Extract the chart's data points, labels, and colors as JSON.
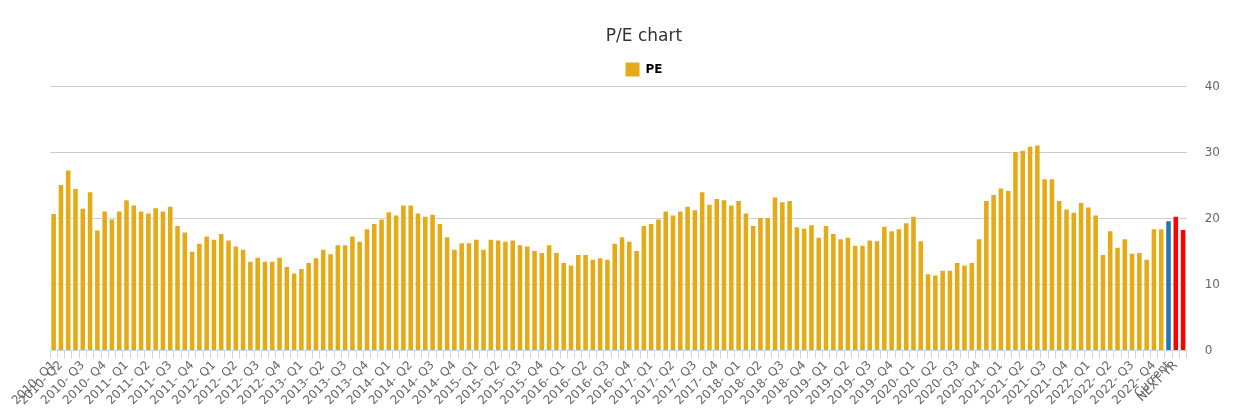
{
  "chart_data": {
    "type": "bar",
    "title": "P/E chart",
    "categories": [
      "2010- Q1",
      "2010- Q2",
      null,
      null,
      "2010- Q3",
      null,
      null,
      "2010- Q4",
      null,
      null,
      "2011- Q1",
      null,
      null,
      "2011- Q2",
      null,
      null,
      "2011- Q3",
      null,
      null,
      "2011- Q4",
      null,
      null,
      "2012- Q1",
      null,
      null,
      "2012- Q2",
      null,
      null,
      "2012- Q3",
      null,
      null,
      "2012- Q4",
      null,
      null,
      "2013- Q1",
      null,
      null,
      "2013- Q2",
      null,
      null,
      "2013- Q3",
      null,
      null,
      "2013- Q4",
      null,
      null,
      "2014- Q1",
      null,
      null,
      "2014- Q2",
      null,
      null,
      "2014- Q3",
      null,
      null,
      "2014- Q4",
      null,
      null,
      "2015- Q1",
      null,
      null,
      "2015- Q2",
      null,
      null,
      "2015- Q3",
      null,
      null,
      "2015- Q4",
      null,
      null,
      "2016- Q1",
      null,
      null,
      "2016- Q2",
      null,
      null,
      "2016- Q3",
      null,
      null,
      "2016- Q4",
      null,
      null,
      "2017- Q1",
      null,
      null,
      "2017- Q2",
      null,
      null,
      "2017- Q3",
      null,
      null,
      "2017- Q4",
      null,
      null,
      "2018- Q1",
      null,
      null,
      "2018- Q2",
      null,
      null,
      "2018- Q3",
      null,
      null,
      "2018- Q4",
      null,
      null,
      "2019- Q1",
      null,
      null,
      "2019- Q2",
      null,
      null,
      "2019- Q3",
      null,
      null,
      "2019- Q4",
      null,
      null,
      "2020- Q1",
      null,
      null,
      "2020- Q2",
      null,
      null,
      "2020- Q3",
      null,
      null,
      "2020- Q4",
      null,
      null,
      "2021- Q1",
      null,
      null,
      "2021- Q2",
      null,
      null,
      "2021- Q3",
      null,
      null,
      "2021- Q4",
      null,
      null,
      "2022- Q1",
      null,
      null,
      "2022- Q2",
      null,
      null,
      "2022- Q3",
      null,
      null,
      "2022- Q4",
      null,
      "Current",
      "NEXT YR",
      null
    ],
    "series": [
      {
        "name": "PE",
        "color": "#e5ab17",
        "colors": [
          "#e5ab17",
          "#e5ab17",
          "#e5ab17",
          "#e5ab17",
          "#e5ab17",
          "#e5ab17",
          "#e5ab17",
          "#e5ab17",
          "#e5ab17",
          "#e5ab17",
          "#e5ab17",
          "#e5ab17",
          "#e5ab17",
          "#e5ab17",
          "#e5ab17",
          "#e5ab17",
          "#e5ab17",
          "#e5ab17",
          "#e5ab17",
          "#e5ab17",
          "#e5ab17",
          "#e5ab17",
          "#e5ab17",
          "#e5ab17",
          "#e5ab17",
          "#e5ab17",
          "#e5ab17",
          "#e5ab17",
          "#e5ab17",
          "#e5ab17",
          "#e5ab17",
          "#e5ab17",
          "#e5ab17",
          "#e5ab17",
          "#e5ab17",
          "#e5ab17",
          "#e5ab17",
          "#e5ab17",
          "#e5ab17",
          "#e5ab17",
          "#e5ab17",
          "#e5ab17",
          "#e5ab17",
          "#e5ab17",
          "#e5ab17",
          "#e5ab17",
          "#e5ab17",
          "#e5ab17",
          "#e5ab17",
          "#e5ab17",
          "#e5ab17",
          "#e5ab17",
          "#e5ab17",
          "#e5ab17",
          "#e5ab17",
          "#e5ab17",
          "#e5ab17",
          "#e5ab17",
          "#e5ab17",
          "#e5ab17",
          "#e5ab17",
          "#e5ab17",
          "#e5ab17",
          "#e5ab17",
          "#e5ab17",
          "#e5ab17",
          "#e5ab17",
          "#e5ab17",
          "#e5ab17",
          "#e5ab17",
          "#e5ab17",
          "#e5ab17",
          "#e5ab17",
          "#e5ab17",
          "#e5ab17",
          "#e5ab17",
          "#e5ab17",
          "#e5ab17",
          "#e5ab17",
          "#e5ab17",
          "#e5ab17",
          "#e5ab17",
          "#e5ab17",
          "#e5ab17",
          "#e5ab17",
          "#e5ab17",
          "#e5ab17",
          "#e5ab17",
          "#e5ab17",
          "#e5ab17",
          "#e5ab17",
          "#e5ab17",
          "#e5ab17",
          "#e5ab17",
          "#e5ab17",
          "#e5ab17",
          "#e5ab17",
          "#e5ab17",
          "#e5ab17",
          "#e5ab17",
          "#e5ab17",
          "#e5ab17",
          "#e5ab17",
          "#e5ab17",
          "#e5ab17",
          "#e5ab17",
          "#e5ab17",
          "#e5ab17",
          "#e5ab17",
          "#e5ab17",
          "#e5ab17",
          "#e5ab17",
          "#e5ab17",
          "#e5ab17",
          "#e5ab17",
          "#e5ab17",
          "#e5ab17",
          "#e5ab17",
          "#e5ab17",
          "#e5ab17",
          "#e5ab17",
          "#e5ab17",
          "#e5ab17",
          "#e5ab17",
          "#e5ab17",
          "#e5ab17",
          "#e5ab17",
          "#e5ab17",
          "#e5ab17",
          "#e5ab17",
          "#e5ab17",
          "#e5ab17",
          "#e5ab17",
          "#e5ab17",
          "#e5ab17",
          "#e5ab17",
          "#e5ab17",
          "#e5ab17",
          "#e5ab17",
          "#e5ab17",
          "#e5ab17",
          "#e5ab17",
          "#e5ab17",
          "#e5ab17",
          "#e5ab17",
          "#e5ab17",
          "#e5ab17",
          "#e5ab17",
          "#e5ab17",
          "#e5ab17",
          "#e5ab17",
          "#e5ab17",
          "#e5ab17",
          "#1f77b4",
          "#ff0000",
          "#ff0000"
        ],
        "values": [
          20.8,
          25.2,
          27.4,
          24.6,
          21.6,
          24.1,
          18.3,
          21.2,
          20.0,
          21.2,
          22.9,
          22.1,
          21.2,
          20.9,
          21.7,
          21.2,
          21.9,
          19.0,
          18.0,
          15.1,
          16.3,
          17.4,
          16.9,
          17.8,
          16.8,
          15.9,
          15.4,
          13.6,
          14.2,
          13.6,
          13.6,
          14.2,
          12.8,
          11.8,
          12.5,
          13.4,
          14.1,
          15.4,
          14.7,
          16.1,
          16.1,
          17.4,
          16.6,
          18.5,
          19.3,
          20.0,
          21.1,
          20.6,
          22.1,
          22.1,
          20.9,
          20.4,
          20.7,
          19.3,
          17.3,
          15.4,
          16.4,
          16.4,
          16.9,
          15.4,
          16.9,
          16.8,
          16.6,
          16.8,
          16.1,
          15.9,
          15.2,
          14.9,
          16.1,
          14.9,
          13.4,
          13.0,
          14.6,
          14.6,
          13.9,
          14.1,
          13.9,
          16.3,
          17.3,
          16.6,
          15.2,
          19.0,
          19.3,
          20.0,
          21.2,
          20.6,
          21.2,
          21.9,
          21.4,
          24.1,
          22.2,
          23.1,
          22.9,
          22.1,
          22.8,
          20.9,
          19.0,
          20.2,
          20.2,
          23.3,
          22.6,
          22.8,
          18.8,
          18.6,
          19.1,
          17.2,
          19.0,
          17.8,
          17.0,
          17.2,
          16.0,
          16.0,
          16.8,
          16.7,
          18.9,
          18.2,
          18.5,
          19.4,
          20.4,
          16.7,
          11.7,
          11.5,
          12.2,
          12.2,
          13.4,
          13.0,
          13.4,
          17.0,
          22.8,
          23.7,
          24.7,
          24.3,
          30.2,
          30.4,
          31.0,
          31.2,
          26.1,
          26.1,
          22.8,
          21.5,
          21.0,
          22.5,
          21.8,
          20.6,
          14.6,
          18.2,
          15.7,
          17.0,
          14.8,
          14.9,
          13.9,
          18.5,
          18.5,
          19.7,
          20.4,
          18.4
        ]
      }
    ],
    "ylim": [
      0,
      40
    ],
    "yticks": [
      0,
      10,
      20,
      30,
      40
    ],
    "grid": "y",
    "legend": "top"
  }
}
